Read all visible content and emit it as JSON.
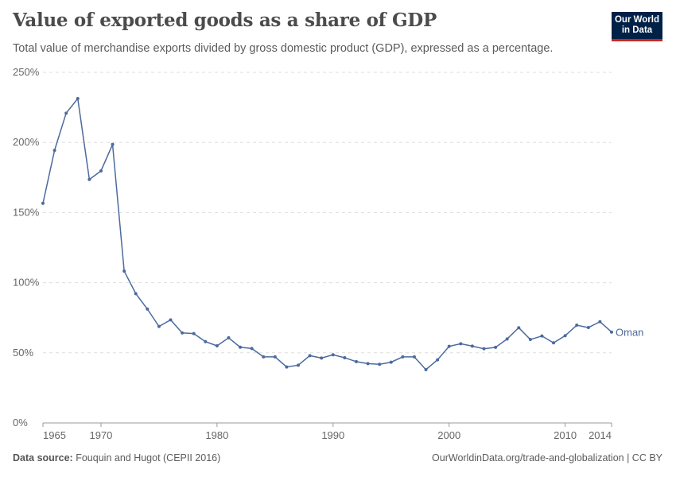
{
  "header": {
    "title": "Value of exported goods as a share of GDP",
    "subtitle": "Total value of merchandise exports divided by gross domestic product (GDP), expressed as a percentage.",
    "logo": "Our World in Data"
  },
  "footer": {
    "source_label": "Data source:",
    "source": "Fouquin and Hugot (CEPII 2016)",
    "url": "OurWorldinData.org/trade-and-globalization | CC BY"
  },
  "colors": {
    "series": "#4c6a9c",
    "logo_bg": "#002147",
    "logo_accent": "#ce261e"
  },
  "chart_data": {
    "type": "line",
    "title": "Value of exported goods as a share of GDP",
    "ylim": [
      0,
      250
    ],
    "xlim": [
      1965,
      2014
    ],
    "y_ticks": [
      0,
      50,
      100,
      150,
      200,
      250
    ],
    "y_tick_labels": [
      "0%",
      "50%",
      "100%",
      "150%",
      "200%",
      "250%"
    ],
    "x_ticks": [
      1965,
      1970,
      1980,
      1990,
      2000,
      2010,
      2014
    ],
    "x_tick_labels": [
      "1965",
      "1970",
      "1980",
      "1990",
      "2000",
      "2010",
      "2014"
    ],
    "grid": "horizontal dashed",
    "legend": "end-of-line label",
    "series": [
      {
        "name": "Oman",
        "x": [
          1965,
          1966,
          1967,
          1968,
          1969,
          1970,
          1971,
          1972,
          1973,
          1974,
          1975,
          1976,
          1977,
          1978,
          1979,
          1980,
          1981,
          1982,
          1983,
          1984,
          1985,
          1986,
          1987,
          1988,
          1989,
          1990,
          1991,
          1992,
          1993,
          1994,
          1995,
          1996,
          1997,
          1998,
          1999,
          2000,
          2001,
          2002,
          2003,
          2004,
          2005,
          2006,
          2007,
          2008,
          2009,
          2010,
          2011,
          2012,
          2013,
          2014
        ],
        "values": [
          156.6,
          194.4,
          220.9,
          231.3,
          173.6,
          179.7,
          198.6,
          108.3,
          92.2,
          81.2,
          68.8,
          73.5,
          64.2,
          63.7,
          58.0,
          55.0,
          60.7,
          54.0,
          53.1,
          47.1,
          47.1,
          39.9,
          41.2,
          48.0,
          46.3,
          48.6,
          46.5,
          43.7,
          42.3,
          41.8,
          43.3,
          47.1,
          47.1,
          38.0,
          45.0,
          54.6,
          56.5,
          54.8,
          52.9,
          53.9,
          59.9,
          67.9,
          59.5,
          62.0,
          57.1,
          62.2,
          69.7,
          68.0,
          72.2,
          64.8
        ]
      }
    ]
  }
}
